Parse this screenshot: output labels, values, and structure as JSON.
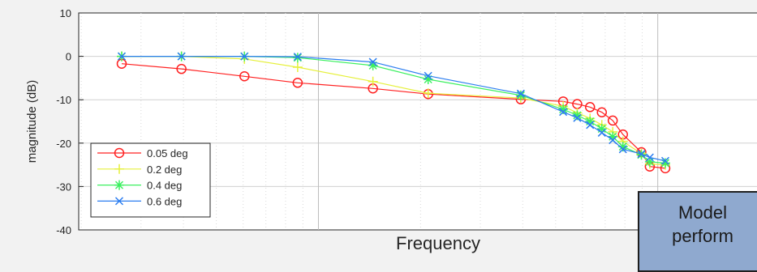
{
  "chart_data": {
    "type": "line",
    "title": "",
    "xlabel": "Frequency",
    "ylabel": "magnitude (dB)",
    "xscale": "log",
    "x_tick_labels_shown": false,
    "ylim": [
      -40,
      10
    ],
    "yticks": [
      10,
      0,
      -10,
      -20,
      -30,
      -40
    ],
    "grid": "dotted",
    "legend_position": "bottom-left",
    "x": [
      1.0,
      1.5,
      2.3,
      3.3,
      5.5,
      8.0,
      15,
      20,
      22,
      24,
      26,
      28,
      30,
      34,
      36,
      40
    ],
    "series": [
      {
        "name": "0.05 deg",
        "color": "#ff2020",
        "marker": "circle",
        "values": [
          -1.7,
          -2.9,
          -4.6,
          -6.1,
          -7.4,
          -8.7,
          -9.9,
          -10.4,
          -11.0,
          -11.7,
          -12.9,
          -14.8,
          -18.0,
          -22.1,
          -25.4,
          -25.8
        ]
      },
      {
        "name": "0.2 deg",
        "color": "#e6f03c",
        "marker": "plus",
        "values": [
          0.0,
          0.0,
          -0.6,
          -2.5,
          -5.8,
          -8.5,
          -9.6,
          -11.5,
          -13.0,
          -14.3,
          -15.8,
          -17.4,
          -19.6,
          -22.4,
          -24.8,
          -25.0
        ]
      },
      {
        "name": "0.4 deg",
        "color": "#3cf060",
        "marker": "star",
        "values": [
          0.0,
          0.0,
          0.0,
          -0.3,
          -2.1,
          -5.3,
          -9.0,
          -12.2,
          -13.6,
          -15.0,
          -16.7,
          -18.5,
          -20.8,
          -22.7,
          -24.3,
          -24.6
        ]
      },
      {
        "name": "0.6 deg",
        "color": "#2b7df0",
        "marker": "x",
        "values": [
          0.0,
          0.0,
          0.0,
          -0.1,
          -1.3,
          -4.5,
          -8.6,
          -12.8,
          -14.2,
          -15.8,
          -17.6,
          -19.3,
          -21.4,
          -22.5,
          -23.3,
          -24.1
        ]
      }
    ]
  },
  "callout": {
    "text": "Model\nperform"
  }
}
